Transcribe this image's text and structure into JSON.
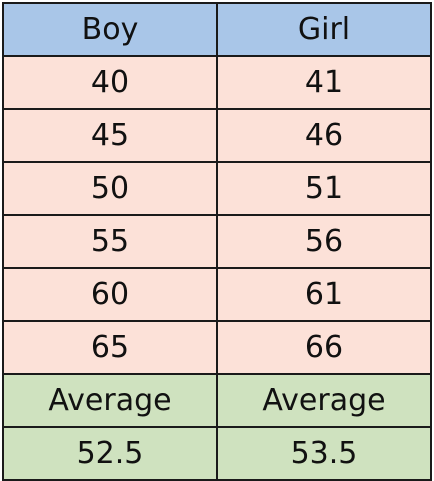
{
  "table": {
    "headers": [
      "Boy",
      "Girl"
    ],
    "rows": [
      [
        "40",
        "41"
      ],
      [
        "45",
        "46"
      ],
      [
        "50",
        "51"
      ],
      [
        "55",
        "56"
      ],
      [
        "60",
        "61"
      ],
      [
        "65",
        "66"
      ]
    ],
    "average_labels": [
      "Average",
      "Average"
    ],
    "averages": [
      "52.5",
      "53.5"
    ]
  },
  "colors": {
    "header_fill": "#a9c6e8",
    "body_fill": "#fce1d8",
    "average_fill": "#cfe2bf",
    "border": "#1a1a1a"
  }
}
